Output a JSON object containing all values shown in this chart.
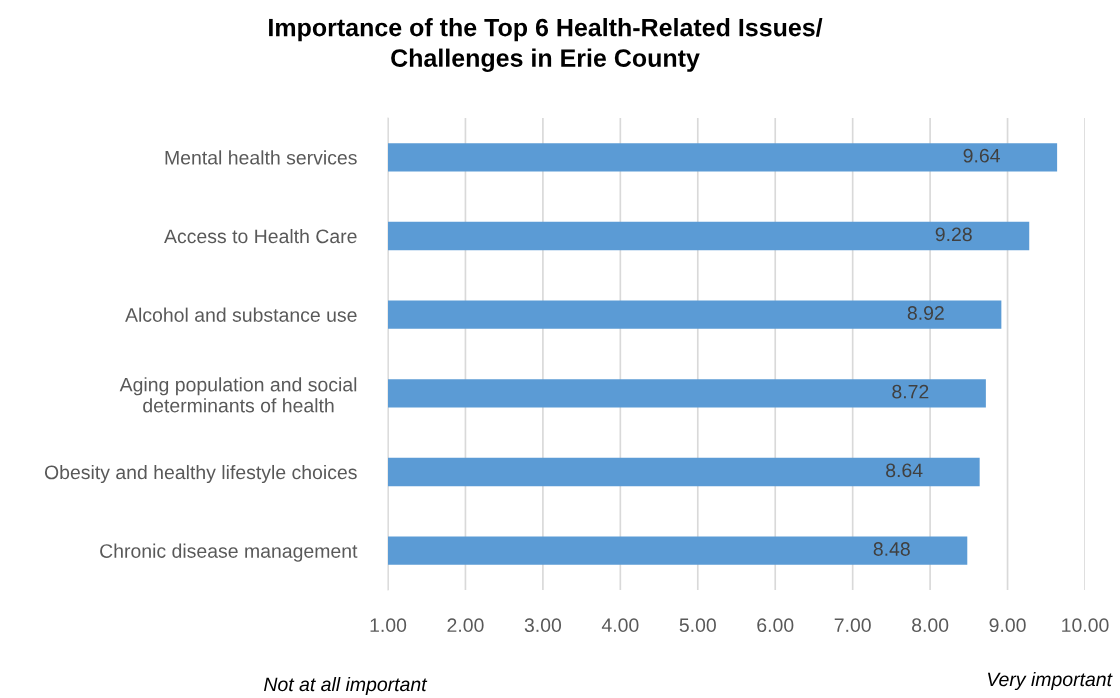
{
  "chart_data": {
    "type": "bar",
    "orientation": "horizontal",
    "title": "Importance of the Top 6 Health-Related Issues/\nChallenges in Erie County",
    "categories": [
      "Mental health services",
      "Access to Health Care",
      "Alcohol and substance use",
      "Aging population and social\ndeterminants of health",
      "Obesity and healthy lifestyle choices",
      "Chronic disease management"
    ],
    "values": [
      9.64,
      9.28,
      8.92,
      8.72,
      8.64,
      8.48
    ],
    "color": "#5b9bd5",
    "data_labels": true,
    "xlim": [
      1,
      10
    ],
    "xticks": [
      {
        "value": 1,
        "label": "1.00"
      },
      {
        "value": 2,
        "label": "2.00"
      },
      {
        "value": 3,
        "label": "3.00"
      },
      {
        "value": 4,
        "label": "4.00"
      },
      {
        "value": 5,
        "label": "5.00"
      },
      {
        "value": 6,
        "label": "6.00"
      },
      {
        "value": 7,
        "label": "7.00"
      },
      {
        "value": 8,
        "label": "8.00"
      },
      {
        "value": 9,
        "label": "9.00"
      },
      {
        "value": 10,
        "label": "10.00"
      }
    ],
    "grid": "x",
    "annotations": [
      "Not at all important",
      "Very important"
    ]
  }
}
